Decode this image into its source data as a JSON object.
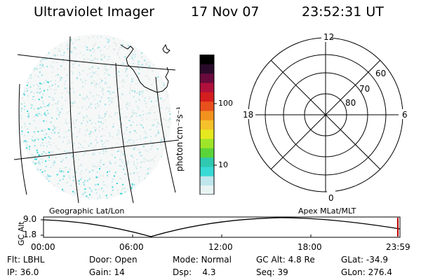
{
  "header": {
    "instrument": "Ultraviolet Imager",
    "date": "17 Nov 07",
    "time": "23:52:31 UT"
  },
  "colorbar": {
    "unit_label": "photon cm⁻²s⁻¹",
    "ticks": [
      "100",
      "10"
    ],
    "colors": [
      "#e8f4f4",
      "#bfe6ec",
      "#39d9d6",
      "#2fc8b0",
      "#5bd43a",
      "#9ee52a",
      "#e6e820",
      "#f6c12a",
      "#f2921e",
      "#e8501e",
      "#d41d1e",
      "#b0103c",
      "#6a0a3c",
      "#2a0a2a",
      "#000000"
    ]
  },
  "left_panel": {
    "label": "Geographic Lat/Lon",
    "scatter_colors": [
      "#dfe8e8",
      "#c4e8ec",
      "#8fe0e4",
      "#30d3d3"
    ]
  },
  "right_panel": {
    "label": "Apex MLat/MLT",
    "mlt_labels": {
      "top": "12",
      "bottom": "0",
      "left": "18",
      "right": "6"
    },
    "lat_labels": [
      "60",
      "70",
      "80"
    ]
  },
  "altitude": {
    "axis_label": "GC Alt",
    "ticks": [
      "9.0",
      "1.8"
    ],
    "time_ticks": [
      "00:00",
      "06:00",
      "12:00",
      "18:00",
      "23:59"
    ]
  },
  "status": {
    "row1": [
      {
        "key": "Flt:",
        "value": "LBHL"
      },
      {
        "key": "Door:",
        "value": "Open"
      },
      {
        "key": "Mode:",
        "value": "Normal"
      },
      {
        "key": "GC Alt:",
        "value": "4.8 Re"
      },
      {
        "key": "GLat:",
        "value": "-34.9"
      }
    ],
    "row2": [
      {
        "key": "IP:",
        "value": "36.0"
      },
      {
        "key": "Gain:",
        "value": "14"
      },
      {
        "key": "Dsp:",
        "value": "4.3"
      },
      {
        "key": "Seq:",
        "value": "39"
      },
      {
        "key": "GLon:",
        "value": "276.4"
      }
    ]
  }
}
